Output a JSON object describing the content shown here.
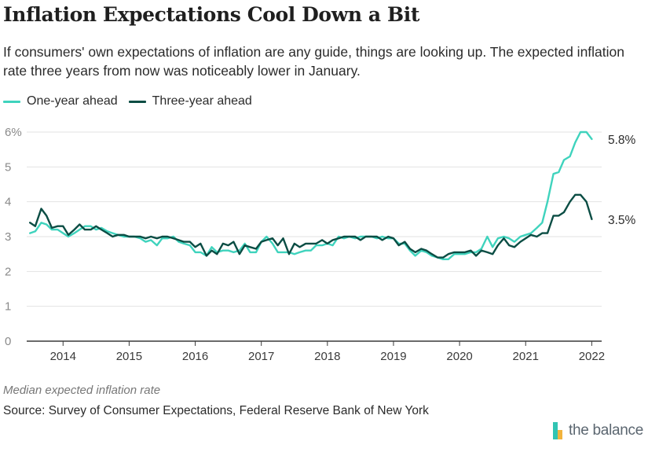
{
  "title": "Inflation Expectations Cool Down a Bit",
  "subtitle": "If consumers' own expectations of inflation are any guide, things are looking up. The expected inflation rate three years from now was noticeably lower in January.",
  "note": "Median expected inflation rate",
  "source": "Source: Survey of Consumer Expectations, Federal Reserve Bank of New York",
  "logo_text": "the balance",
  "colors": {
    "one_year": "#3fd3bd",
    "three_year": "#0b4d44",
    "axis": "#3a3a3a",
    "grid": "#e2e2e2",
    "tick_text": "#8a8a8a",
    "year_text": "#3a3a3a",
    "logo_teal": "#31c4b3",
    "logo_yellow": "#f2b33d"
  },
  "chart_data": {
    "type": "line",
    "title": "Inflation Expectations Cool Down a Bit",
    "ylabel": "",
    "xlabel": "",
    "ylim": [
      0,
      6
    ],
    "xlim": [
      2013.45,
      2022.15
    ],
    "y_ticks": [
      "0",
      "1",
      "2",
      "3",
      "4",
      "5",
      "6%"
    ],
    "x_ticks": [
      2014,
      2015,
      2016,
      2017,
      2018,
      2019,
      2020,
      2021,
      2022
    ],
    "legend_position": "top-left",
    "grid": "horizontal",
    "end_labels": [
      "5.8%",
      "3.5%"
    ],
    "series": [
      {
        "name": "One-year ahead",
        "color": "#3fd3bd",
        "end_label": "5.8%",
        "points": [
          [
            2013.5,
            3.1
          ],
          [
            2013.58,
            3.15
          ],
          [
            2013.67,
            3.4
          ],
          [
            2013.75,
            3.35
          ],
          [
            2013.83,
            3.2
          ],
          [
            2013.92,
            3.2
          ],
          [
            2014.0,
            3.1
          ],
          [
            2014.08,
            3.0
          ],
          [
            2014.17,
            3.1
          ],
          [
            2014.25,
            3.2
          ],
          [
            2014.33,
            3.3
          ],
          [
            2014.42,
            3.3
          ],
          [
            2014.5,
            3.2
          ],
          [
            2014.58,
            3.25
          ],
          [
            2014.67,
            3.15
          ],
          [
            2014.75,
            3.1
          ],
          [
            2014.83,
            3.05
          ],
          [
            2014.92,
            3.0
          ],
          [
            2015.0,
            3.0
          ],
          [
            2015.08,
            3.0
          ],
          [
            2015.17,
            2.95
          ],
          [
            2015.25,
            2.85
          ],
          [
            2015.33,
            2.9
          ],
          [
            2015.42,
            2.75
          ],
          [
            2015.5,
            2.95
          ],
          [
            2015.58,
            2.95
          ],
          [
            2015.67,
            3.0
          ],
          [
            2015.75,
            2.85
          ],
          [
            2015.83,
            2.8
          ],
          [
            2015.92,
            2.75
          ],
          [
            2016.0,
            2.55
          ],
          [
            2016.08,
            2.55
          ],
          [
            2016.17,
            2.45
          ],
          [
            2016.25,
            2.7
          ],
          [
            2016.33,
            2.55
          ],
          [
            2016.42,
            2.6
          ],
          [
            2016.5,
            2.6
          ],
          [
            2016.58,
            2.55
          ],
          [
            2016.67,
            2.6
          ],
          [
            2016.75,
            2.8
          ],
          [
            2016.83,
            2.55
          ],
          [
            2016.92,
            2.55
          ],
          [
            2017.0,
            2.85
          ],
          [
            2017.08,
            3.0
          ],
          [
            2017.17,
            2.8
          ],
          [
            2017.25,
            2.55
          ],
          [
            2017.33,
            2.55
          ],
          [
            2017.42,
            2.55
          ],
          [
            2017.5,
            2.5
          ],
          [
            2017.58,
            2.55
          ],
          [
            2017.67,
            2.6
          ],
          [
            2017.75,
            2.6
          ],
          [
            2017.83,
            2.75
          ],
          [
            2017.92,
            2.75
          ],
          [
            2018.0,
            2.8
          ],
          [
            2018.08,
            2.75
          ],
          [
            2018.17,
            3.0
          ],
          [
            2018.25,
            2.95
          ],
          [
            2018.33,
            3.0
          ],
          [
            2018.42,
            2.95
          ],
          [
            2018.5,
            3.0
          ],
          [
            2018.58,
            3.0
          ],
          [
            2018.67,
            3.0
          ],
          [
            2018.75,
            2.95
          ],
          [
            2018.83,
            3.0
          ],
          [
            2018.92,
            2.95
          ],
          [
            2019.0,
            2.95
          ],
          [
            2019.08,
            2.8
          ],
          [
            2019.17,
            2.8
          ],
          [
            2019.25,
            2.6
          ],
          [
            2019.33,
            2.45
          ],
          [
            2019.42,
            2.6
          ],
          [
            2019.5,
            2.55
          ],
          [
            2019.58,
            2.45
          ],
          [
            2019.67,
            2.4
          ],
          [
            2019.75,
            2.35
          ],
          [
            2019.83,
            2.35
          ],
          [
            2019.92,
            2.5
          ],
          [
            2020.0,
            2.5
          ],
          [
            2020.08,
            2.5
          ],
          [
            2020.17,
            2.55
          ],
          [
            2020.25,
            2.55
          ],
          [
            2020.33,
            2.65
          ],
          [
            2020.42,
            3.0
          ],
          [
            2020.5,
            2.7
          ],
          [
            2020.58,
            2.95
          ],
          [
            2020.67,
            3.0
          ],
          [
            2020.75,
            2.95
          ],
          [
            2020.83,
            2.85
          ],
          [
            2020.92,
            3.0
          ],
          [
            2021.0,
            3.05
          ],
          [
            2021.08,
            3.1
          ],
          [
            2021.17,
            3.25
          ],
          [
            2021.25,
            3.4
          ],
          [
            2021.33,
            4.0
          ],
          [
            2021.42,
            4.8
          ],
          [
            2021.5,
            4.85
          ],
          [
            2021.58,
            5.2
          ],
          [
            2021.67,
            5.3
          ],
          [
            2021.75,
            5.7
          ],
          [
            2021.83,
            6.0
          ],
          [
            2021.92,
            6.0
          ],
          [
            2022.0,
            5.8
          ]
        ]
      },
      {
        "name": "Three-year ahead",
        "color": "#0b4d44",
        "end_label": "3.5%",
        "points": [
          [
            2013.5,
            3.4
          ],
          [
            2013.58,
            3.3
          ],
          [
            2013.67,
            3.8
          ],
          [
            2013.75,
            3.6
          ],
          [
            2013.83,
            3.25
          ],
          [
            2013.92,
            3.3
          ],
          [
            2014.0,
            3.3
          ],
          [
            2014.08,
            3.05
          ],
          [
            2014.17,
            3.2
          ],
          [
            2014.25,
            3.35
          ],
          [
            2014.33,
            3.2
          ],
          [
            2014.42,
            3.2
          ],
          [
            2014.5,
            3.3
          ],
          [
            2014.58,
            3.2
          ],
          [
            2014.67,
            3.1
          ],
          [
            2014.75,
            3.0
          ],
          [
            2014.83,
            3.05
          ],
          [
            2014.92,
            3.05
          ],
          [
            2015.0,
            3.0
          ],
          [
            2015.08,
            3.0
          ],
          [
            2015.17,
            3.0
          ],
          [
            2015.25,
            2.95
          ],
          [
            2015.33,
            3.0
          ],
          [
            2015.42,
            2.95
          ],
          [
            2015.5,
            3.0
          ],
          [
            2015.58,
            3.0
          ],
          [
            2015.67,
            2.95
          ],
          [
            2015.75,
            2.9
          ],
          [
            2015.83,
            2.85
          ],
          [
            2015.92,
            2.85
          ],
          [
            2016.0,
            2.7
          ],
          [
            2016.08,
            2.8
          ],
          [
            2016.17,
            2.45
          ],
          [
            2016.25,
            2.6
          ],
          [
            2016.33,
            2.5
          ],
          [
            2016.42,
            2.8
          ],
          [
            2016.5,
            2.75
          ],
          [
            2016.58,
            2.85
          ],
          [
            2016.67,
            2.5
          ],
          [
            2016.75,
            2.75
          ],
          [
            2016.83,
            2.7
          ],
          [
            2016.92,
            2.65
          ],
          [
            2017.0,
            2.85
          ],
          [
            2017.08,
            2.9
          ],
          [
            2017.17,
            2.95
          ],
          [
            2017.25,
            2.75
          ],
          [
            2017.33,
            2.95
          ],
          [
            2017.42,
            2.5
          ],
          [
            2017.5,
            2.8
          ],
          [
            2017.58,
            2.7
          ],
          [
            2017.67,
            2.8
          ],
          [
            2017.75,
            2.8
          ],
          [
            2017.83,
            2.8
          ],
          [
            2017.92,
            2.9
          ],
          [
            2018.0,
            2.8
          ],
          [
            2018.08,
            2.9
          ],
          [
            2018.17,
            2.95
          ],
          [
            2018.25,
            3.0
          ],
          [
            2018.33,
            3.0
          ],
          [
            2018.42,
            3.0
          ],
          [
            2018.5,
            2.9
          ],
          [
            2018.58,
            3.0
          ],
          [
            2018.67,
            3.0
          ],
          [
            2018.75,
            3.0
          ],
          [
            2018.83,
            2.9
          ],
          [
            2018.92,
            3.0
          ],
          [
            2019.0,
            2.95
          ],
          [
            2019.08,
            2.75
          ],
          [
            2019.17,
            2.85
          ],
          [
            2019.25,
            2.65
          ],
          [
            2019.33,
            2.55
          ],
          [
            2019.42,
            2.65
          ],
          [
            2019.5,
            2.6
          ],
          [
            2019.58,
            2.5
          ],
          [
            2019.67,
            2.4
          ],
          [
            2019.75,
            2.4
          ],
          [
            2019.83,
            2.5
          ],
          [
            2019.92,
            2.55
          ],
          [
            2020.0,
            2.55
          ],
          [
            2020.08,
            2.55
          ],
          [
            2020.17,
            2.6
          ],
          [
            2020.25,
            2.45
          ],
          [
            2020.33,
            2.6
          ],
          [
            2020.42,
            2.55
          ],
          [
            2020.5,
            2.5
          ],
          [
            2020.58,
            2.75
          ],
          [
            2020.67,
            2.95
          ],
          [
            2020.75,
            2.75
          ],
          [
            2020.83,
            2.7
          ],
          [
            2020.92,
            2.85
          ],
          [
            2021.0,
            2.95
          ],
          [
            2021.08,
            3.05
          ],
          [
            2021.17,
            3.0
          ],
          [
            2021.25,
            3.1
          ],
          [
            2021.33,
            3.1
          ],
          [
            2021.42,
            3.6
          ],
          [
            2021.5,
            3.6
          ],
          [
            2021.58,
            3.7
          ],
          [
            2021.67,
            4.0
          ],
          [
            2021.75,
            4.2
          ],
          [
            2021.83,
            4.2
          ],
          [
            2021.92,
            4.0
          ],
          [
            2022.0,
            3.5
          ]
        ]
      }
    ]
  }
}
